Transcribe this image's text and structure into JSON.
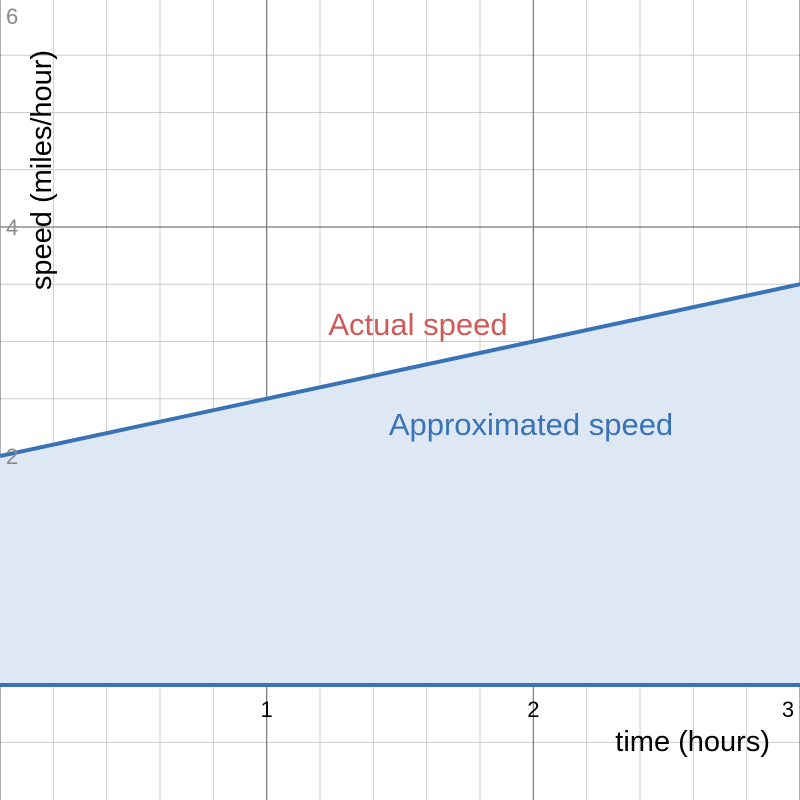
{
  "chart_data": {
    "type": "area",
    "xlabel": "time (hours)",
    "ylabel": "speed (miles/hour)",
    "xlim": [
      0,
      3
    ],
    "ylim": [
      -0.4,
      6.2
    ],
    "grid": true,
    "x_ticks": [
      "1",
      "2",
      "3"
    ],
    "y_ticks": [
      "2",
      "4",
      "6"
    ],
    "series": [
      {
        "name": "Actual speed",
        "x": [
          0,
          3
        ],
        "y": [
          2,
          3.5
        ],
        "color": "#d05a5a",
        "line_color": "#3a73b5"
      },
      {
        "name": "Approximated speed",
        "x": [
          0,
          3
        ],
        "y": [
          2,
          3.5
        ],
        "color": "#3a73b5",
        "fill": "#dde8f4"
      }
    ],
    "baseline_y": 0
  }
}
